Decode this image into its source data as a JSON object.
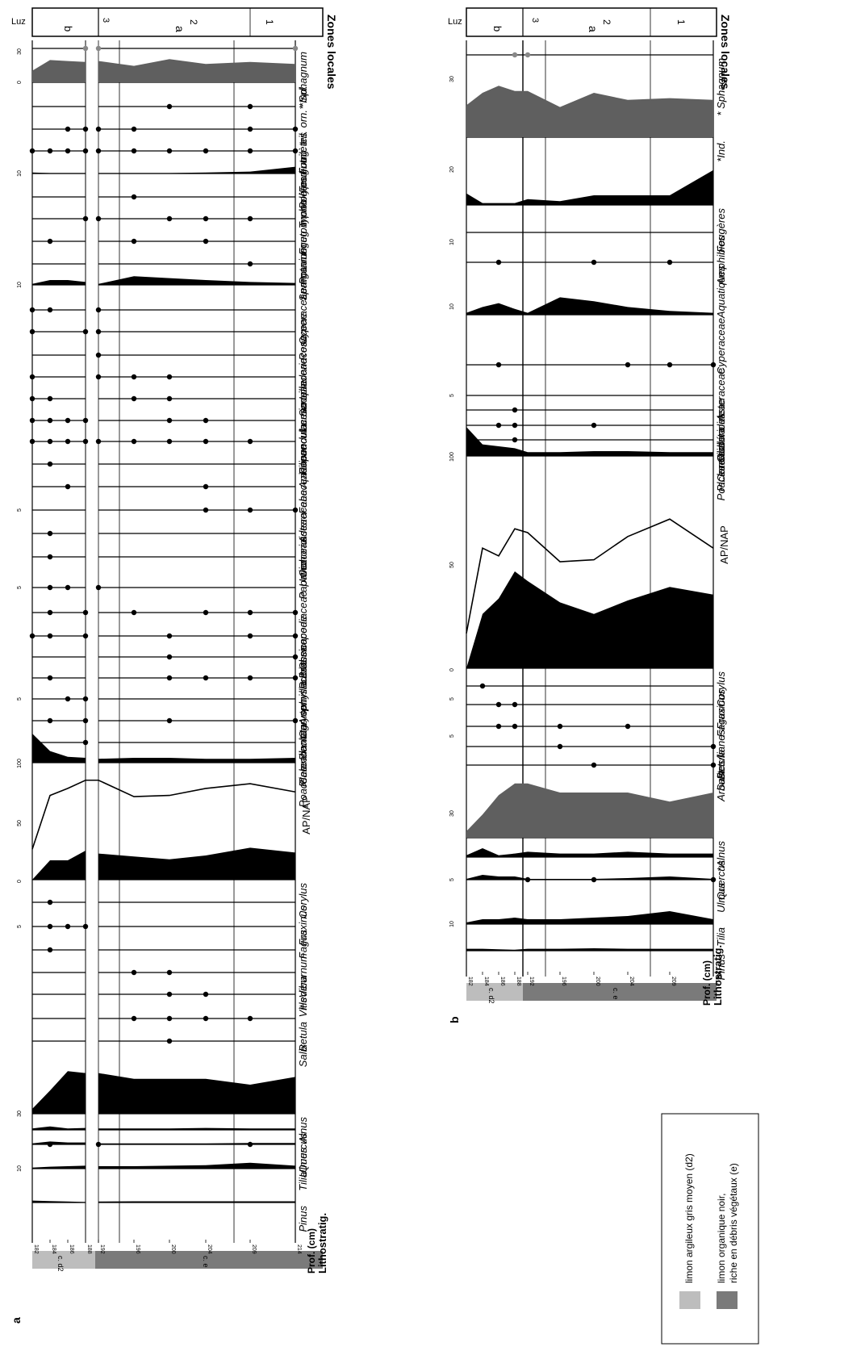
{
  "panel_a": {
    "panel_label": "a",
    "header_litho": "Lithostratig.",
    "header_depth": "Prof. (cm)",
    "header_zones": "Zones locales",
    "header_luz": "Luz",
    "depth_ticks": [
      "182",
      "184",
      "186",
      "188",
      "192",
      "196",
      "200",
      "204",
      "209",
      "214"
    ],
    "litho_units": [
      "c. d2",
      "c. e"
    ],
    "zone_labels": [
      "b",
      "3",
      "a",
      "2",
      "1"
    ],
    "tree_taxa": [
      "Pinus",
      "Tilia",
      "Ulmus",
      "Quercus",
      "Alnus",
      "Salix",
      "Betula",
      "Vitis",
      "Hedera",
      "Viburnum",
      "Fagus",
      "Fraxinus",
      "Corylus"
    ],
    "apnap_label": "AP/NAP",
    "herb_taxa": [
      "Poaceae",
      "Cerealia",
      "Pl. lanceolata",
      "Plantago sp.",
      "Artemisia",
      "Caryophyllaceae",
      "Rubiaceae",
      "Brassicaceae",
      "Chenopodiaceae",
      "Papaver",
      "Urticaceae",
      "Cichorioideae",
      "Asteraceae",
      "Fabaceae",
      "Apiaceae",
      "Filipendula",
      "Ranunculaceae",
      "Lamiaceae",
      "Liliaceae",
      "Scrophulariaceae",
      "Rosaceae",
      "Cyperaceae",
      "Lemna",
      "Sparganium",
      "Potamogeton",
      "Typha",
      "Foug. monolètes",
      "Polypodium",
      "Foug. trilètes",
      "Foug. tril. orn.",
      "*Ind.",
      "* Sphagnum"
    ],
    "scale_labels": {
      "tilia": "10",
      "alnus": "30",
      "fagus": "5",
      "corylus": "0",
      "apnap_0": "0",
      "apnap_50": "50",
      "apnap_100": "100",
      "plantago": "5",
      "chenopod": "5",
      "cichor": "5",
      "cyper": "10",
      "foug": "10",
      "ind_0": "0",
      "ind_30": "30"
    }
  },
  "panel_b": {
    "panel_label": "b",
    "header_litho": "Lithostratig.",
    "header_depth": "Prof. (cm)",
    "header_zones": "Zones locales",
    "header_luz": "Luz",
    "depth_ticks": [
      "182",
      "184",
      "186",
      "188",
      "192",
      "196",
      "200",
      "204",
      "209",
      "214"
    ],
    "litho_units": [
      "c. d2",
      "c. e"
    ],
    "zone_labels": [
      "b",
      "3",
      "a",
      "2",
      "1"
    ],
    "tree_taxa": [
      "Pinus",
      "Tilia",
      "Ulmus",
      "Quercus",
      "*Alnus",
      "Salix",
      "Betula",
      "Arbustes/lianes",
      "Fagus",
      "Fraxinus",
      "Corylus"
    ],
    "apnap_label": "AP/NAP",
    "herb_taxa": [
      "Poaceae",
      "Cerealia",
      "Pl. lanceolata",
      "Rudérales",
      "Cichorioideae",
      "Asteraceae",
      "Cyperaceae",
      "Aquatiques",
      "Amphibies",
      "Fougères",
      "*Ind.",
      "* Sphagnum"
    ],
    "scale_labels": {
      "tilia": "10",
      "ulmus": "5",
      "alnus": "30",
      "arbustes": "5",
      "fagus": "5",
      "apnap_0": "0",
      "apnap_50": "50",
      "apnap_100": "100",
      "rud": "5",
      "cyper": "10",
      "aqua": "10",
      "foug": "20",
      "ind": "30"
    }
  },
  "legend": {
    "item1": "limon argileux gris moyen (d2)",
    "item2_line1": "limon organique noir,",
    "item2_line2": "riche en débris végétaux (e)",
    "color1": "#bdbdbd",
    "color2": "#7a7a7a"
  },
  "colors": {
    "fill_black": "#000000",
    "fill_grey": "#5f5f5f",
    "litho_d2": "#bdbdbd",
    "litho_e": "#7a7a7a"
  },
  "chart_data": [
    {
      "type": "area",
      "panel": "a",
      "depth_cm": [
        182,
        184,
        186,
        188,
        192,
        196,
        200,
        204,
        209,
        214
      ],
      "gap_between_depths": [
        188,
        192
      ],
      "y_axis": "depth (cm)",
      "series": [
        {
          "name": "Pinus",
          "values": [
            2,
            1.5,
            1,
            0.5,
            1,
            1.2,
            1.2,
            1.2,
            1.2,
            1.2
          ]
        },
        {
          "name": "Tilia",
          "values": [
            1,
            2,
            2.5,
            3,
            2.5,
            2.5,
            3,
            3.5,
            6,
            3
          ]
        },
        {
          "name": "Ulmus",
          "values": [
            1,
            3,
            2,
            2,
            1,
            1,
            1,
            1,
            1.5,
            1.5
          ]
        },
        {
          "name": "Quercus",
          "values": [
            1.5,
            3.5,
            1.5,
            2,
            1.5,
            1.5,
            1.5,
            2,
            1.5,
            1.5
          ]
        },
        {
          "name": "Alnus",
          "values": [
            5,
            24,
            44,
            42,
            42,
            36,
            36,
            36,
            30,
            38
          ]
        },
        {
          "name": "Corylus",
          "values": [
            0,
            20,
            20,
            30,
            27,
            24,
            21,
            25,
            33,
            28
          ]
        },
        {
          "name": "AP/NAP",
          "values": [
            26,
            72,
            78,
            85,
            85,
            71,
            72,
            78,
            82,
            75
          ]
        },
        {
          "name": "Poaceae",
          "values": [
            30,
            12,
            6,
            5,
            4,
            5,
            5,
            4,
            4,
            5
          ]
        },
        {
          "name": "Cyperaceae",
          "values": [
            1,
            5,
            5,
            3,
            1,
            9,
            7,
            5,
            3,
            2
          ]
        },
        {
          "name": "Foug. monolètes",
          "values": [
            1,
            0.5,
            0.5,
            0.5,
            0.5,
            0.5,
            0.5,
            1,
            2,
            7
          ]
        },
        {
          "name": "*Ind.",
          "values": [
            12,
            23,
            22,
            21,
            22,
            17,
            24,
            19,
            21,
            19
          ]
        }
      ]
    },
    {
      "type": "area",
      "panel": "b",
      "depth_cm": [
        182,
        184,
        186,
        188,
        192,
        196,
        200,
        204,
        209,
        214
      ],
      "y_axis": "depth (cm)",
      "series": [
        {
          "name": "Pinus",
          "values": [
            2,
            2,
            1.5,
            1,
            2,
            2,
            2.5,
            2,
            2,
            2
          ]
        },
        {
          "name": "Tilia",
          "values": [
            1,
            3,
            3,
            4,
            3,
            3,
            4,
            5,
            8,
            3
          ]
        },
        {
          "name": "Ulmus",
          "values": [
            0.5,
            3,
            2,
            2,
            0.5,
            0.5,
            0.5,
            1,
            2,
            0.5
          ]
        },
        {
          "name": "Quercus",
          "values": [
            1,
            5,
            1,
            2,
            3,
            2,
            2,
            3,
            2,
            2
          ]
        },
        {
          "name": "*Alnus",
          "values": [
            5,
            18,
            33,
            42,
            42,
            35,
            35,
            35,
            28,
            35
          ]
        },
        {
          "name": "Corylus",
          "values": [
            0,
            28,
            36,
            50,
            45,
            34,
            28,
            35,
            42,
            38
          ]
        },
        {
          "name": "AP/NAP",
          "values": [
            18,
            62,
            58,
            72,
            70,
            55,
            56,
            68,
            77,
            62
          ]
        },
        {
          "name": "Poaceae",
          "values": [
            30,
            12,
            10,
            8,
            4,
            4,
            5,
            5,
            4,
            4
          ]
        },
        {
          "name": "Cyperaceae",
          "values": [
            1,
            4,
            6,
            3,
            1,
            9,
            7,
            4,
            2,
            1
          ]
        },
        {
          "name": "Fougères",
          "values": [
            6,
            1,
            1,
            1,
            3,
            2,
            5,
            5,
            5,
            18
          ]
        },
        {
          "name": "*Ind.",
          "values": [
            18,
            25,
            29,
            26,
            26,
            17,
            25,
            21,
            22,
            21
          ]
        }
      ]
    }
  ]
}
